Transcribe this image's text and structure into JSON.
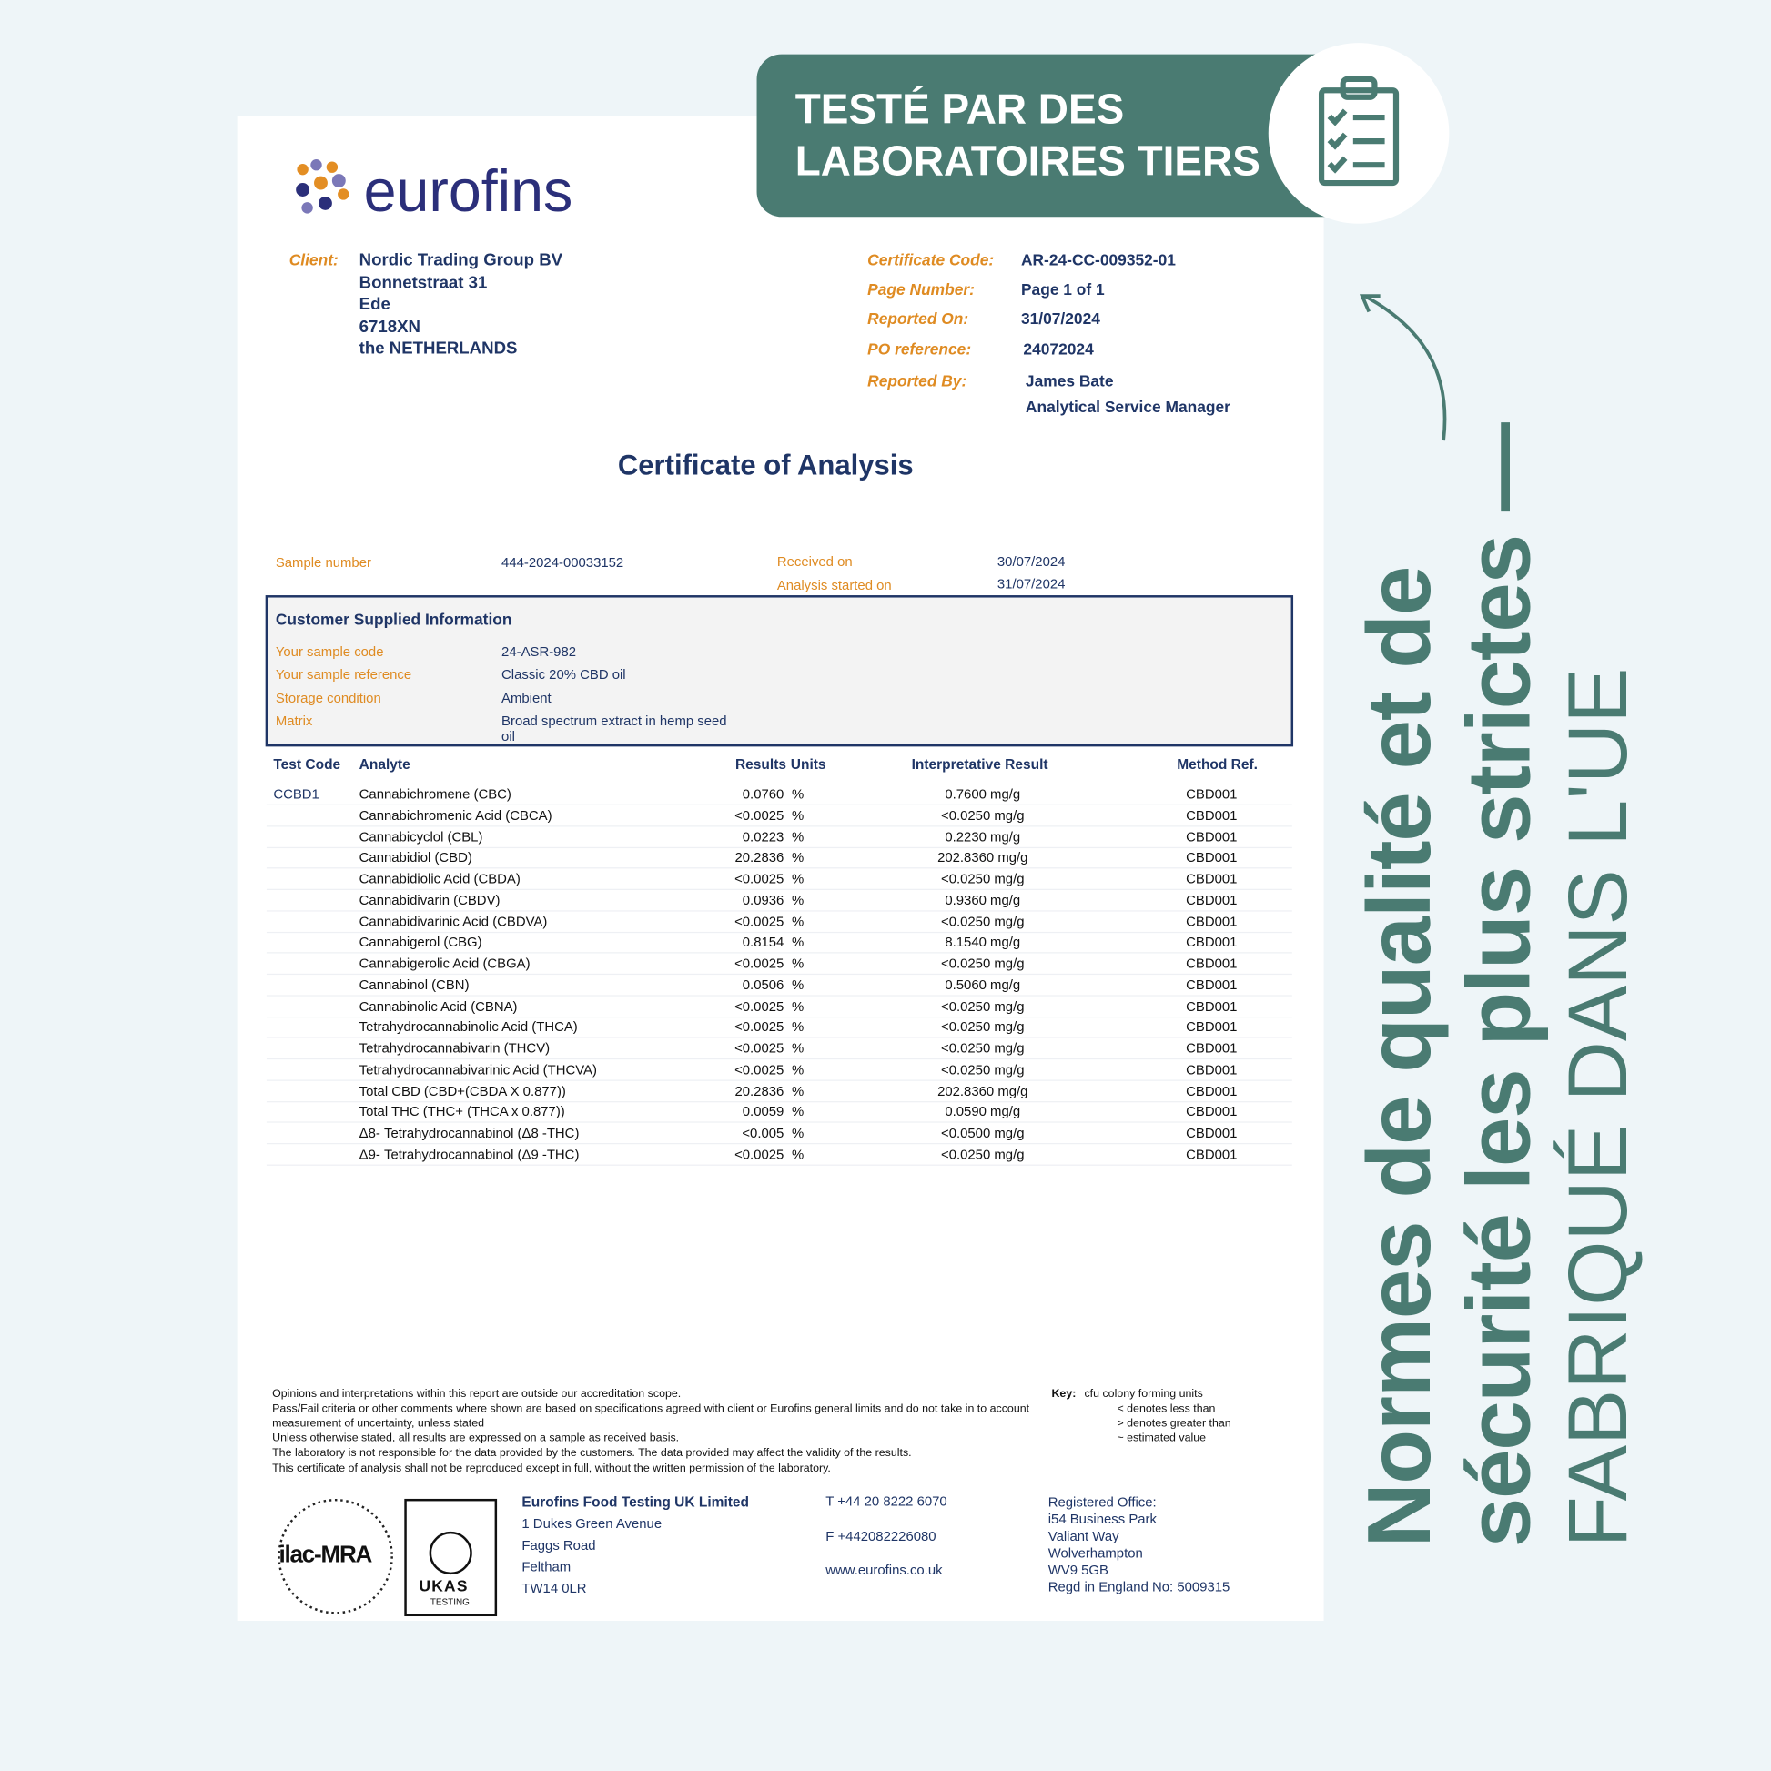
{
  "banner": {
    "lines": [
      "TESTÉ PAR DES",
      "LABORATOIRES TIERS"
    ]
  },
  "side_text": {
    "bold_lines": [
      "Normes de qualité et de",
      "sécurité les plus strictes —"
    ],
    "light_line": "FABRIQUÉ DANS L'UE"
  },
  "certificate": {
    "logo": "eurofins",
    "client": {
      "label": "Client:",
      "lines": [
        "Nordic Trading Group BV",
        "Bonnetstraat 31",
        "Ede",
        "6718XN",
        "the NETHERLANDS"
      ]
    },
    "info": [
      {
        "label": "Certificate Code:",
        "value": "AR-24-CC-009352-01"
      },
      {
        "label": "Page Number:",
        "value": "Page 1 of 1"
      },
      {
        "label": "Reported On:",
        "value": "31/07/2024"
      },
      {
        "label": "PO reference:",
        "value": "24072024"
      },
      {
        "label": "Reported By:",
        "value": "James Bate"
      }
    ],
    "reporter_role": "Analytical Service Manager",
    "title": "Certificate of Analysis",
    "sample": {
      "number_label": "Sample number",
      "number": "444-2024-00033152",
      "received_label": "Received on",
      "received": "30/07/2024",
      "started_label": "Analysis started on",
      "started": "31/07/2024"
    },
    "customer_info": {
      "heading": "Customer Supplied Information",
      "rows": [
        [
          "Your sample code",
          "24-ASR-982"
        ],
        [
          "Your sample reference",
          "Classic 20% CBD oil"
        ],
        [
          "Storage condition",
          "Ambient"
        ],
        [
          "Matrix",
          "Broad spectrum extract in hemp seed oil"
        ]
      ]
    },
    "table": {
      "headers": [
        "Test Code",
        "Analyte",
        "Results",
        "Units",
        "Interpretative Result",
        "Method Ref."
      ],
      "test_code": "CCBD1",
      "rows": [
        [
          "Cannabichromene (CBC)",
          "0.0760",
          "%",
          "0.7600 mg/g",
          "CBD001"
        ],
        [
          "Cannabichromenic Acid (CBCA)",
          "<0.0025",
          "%",
          "<0.0250 mg/g",
          "CBD001"
        ],
        [
          "Cannabicyclol (CBL)",
          "0.0223",
          "%",
          "0.2230 mg/g",
          "CBD001"
        ],
        [
          "Cannabidiol (CBD)",
          "20.2836",
          "%",
          "202.8360 mg/g",
          "CBD001"
        ],
        [
          "Cannabidiolic Acid (CBDA)",
          "<0.0025",
          "%",
          "<0.0250 mg/g",
          "CBD001"
        ],
        [
          "Cannabidivarin (CBDV)",
          "0.0936",
          "%",
          "0.9360 mg/g",
          "CBD001"
        ],
        [
          "Cannabidivarinic Acid (CBDVA)",
          "<0.0025",
          "%",
          "<0.0250 mg/g",
          "CBD001"
        ],
        [
          "Cannabigerol (CBG)",
          "0.8154",
          "%",
          "8.1540 mg/g",
          "CBD001"
        ],
        [
          "Cannabigerolic Acid (CBGA)",
          "<0.0025",
          "%",
          "<0.0250 mg/g",
          "CBD001"
        ],
        [
          "Cannabinol (CBN)",
          "0.0506",
          "%",
          "0.5060 mg/g",
          "CBD001"
        ],
        [
          "Cannabinolic Acid (CBNA)",
          "<0.0025",
          "%",
          "<0.0250 mg/g",
          "CBD001"
        ],
        [
          "Tetrahydrocannabinolic Acid (THCA)",
          "<0.0025",
          "%",
          "<0.0250 mg/g",
          "CBD001"
        ],
        [
          "Tetrahydrocannabivarin (THCV)",
          "<0.0025",
          "%",
          "<0.0250 mg/g",
          "CBD001"
        ],
        [
          "Tetrahydrocannabivarinic Acid (THCVA)",
          "<0.0025",
          "%",
          "<0.0250 mg/g",
          "CBD001"
        ],
        [
          "Total CBD (CBD+(CBDA X 0.877))",
          "20.2836",
          "%",
          "202.8360 mg/g",
          "CBD001"
        ],
        [
          "Total THC (THC+ (THCA x 0.877))",
          "0.0059",
          "%",
          "0.0590 mg/g",
          "CBD001"
        ],
        [
          "Δ8- Tetrahydrocannabinol (Δ8 -THC)",
          "<0.005",
          "%",
          "<0.0500 mg/g",
          "CBD001"
        ],
        [
          "Δ9- Tetrahydrocannabinol (Δ9 -THC)",
          "<0.0025",
          "%",
          "<0.0250 mg/g",
          "CBD001"
        ]
      ]
    },
    "notes": [
      "Opinions and interpretations within this report are outside our accreditation scope.",
      "Pass/Fail criteria or other comments where shown are based on specifications agreed with client or Eurofins general limits and do not take in to account measurement of uncertainty, unless stated",
      "Unless otherwise stated, all results are expressed on a sample as received basis.",
      "The laboratory is not responsible for the data provided by the customers. The data provided may affect the validity of the results.",
      "This certificate of analysis shall not be reproduced except in full, without the written permission of the laboratory."
    ],
    "key": {
      "label": "Key:",
      "lines": [
        "cfu colony forming units",
        "< denotes less than",
        "> denotes greater than",
        "~ estimated value"
      ]
    },
    "badges": {
      "ilac": "ilac-MRA",
      "ukas": "UKAS",
      "ukas_sub": "TESTING"
    },
    "company": {
      "name": "Eurofins Food Testing UK Limited",
      "lines": [
        "1 Dukes Green Avenue",
        "Faggs Road",
        "Feltham",
        "TW14 0LR"
      ]
    },
    "contact": {
      "phone": "T  +44 20 8222 6070",
      "fax": "F  +442082226080",
      "web": "www.eurofins.co.uk"
    },
    "office": [
      "Registered Office:",
      "i54 Business Park",
      "Valiant Way",
      "Wolverhampton",
      "WV9 5GB",
      "Regd in England No: 5009315"
    ]
  }
}
